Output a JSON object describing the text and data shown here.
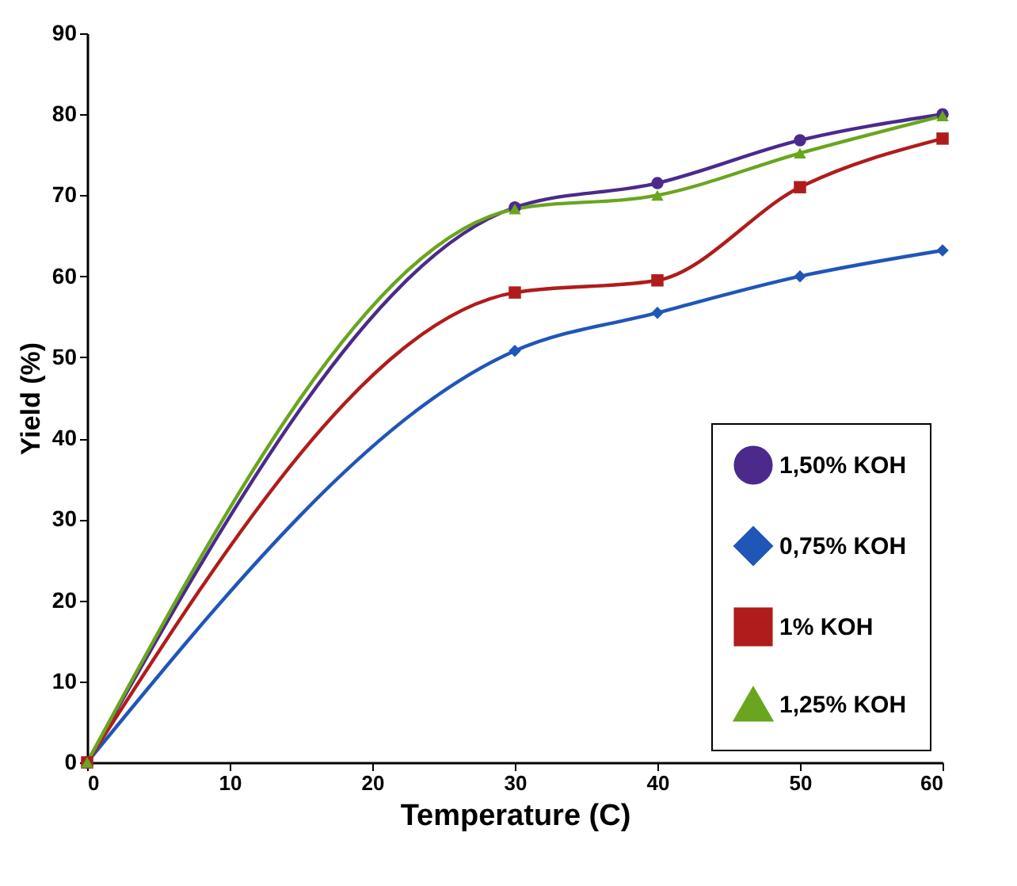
{
  "chart_data": {
    "type": "line",
    "xlabel": "Temperature (C)",
    "ylabel": "Yield (%)",
    "x": [
      0,
      30,
      40,
      50,
      60
    ],
    "xlim": [
      0,
      60
    ],
    "xticks": [
      0,
      10,
      20,
      30,
      40,
      50,
      60
    ],
    "ylim": [
      0,
      90
    ],
    "yticks": [
      0,
      10,
      20,
      30,
      40,
      50,
      60,
      70,
      80,
      90
    ],
    "legend": "bottom right",
    "series": [
      {
        "name": "1,50% KOH",
        "color": "#4b2a8c",
        "marker": "circle",
        "values": [
          0,
          68.5,
          71.5,
          76.8,
          80
        ]
      },
      {
        "name": "0,75% KOH",
        "color": "#1f56b8",
        "marker": "diamond",
        "values": [
          0,
          50.8,
          55.5,
          60,
          63.2
        ]
      },
      {
        "name": "1% KOH",
        "color": "#b01c1c",
        "marker": "square",
        "values": [
          0,
          58,
          59.5,
          71,
          77
        ]
      },
      {
        "name": "1,25% KOH",
        "color": "#6aa51e",
        "marker": "triangle",
        "values": [
          0,
          68.3,
          70,
          75.2,
          79.8
        ]
      }
    ]
  }
}
